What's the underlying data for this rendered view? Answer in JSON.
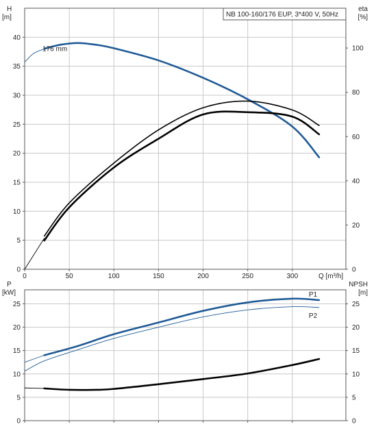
{
  "chart_data": [
    {
      "type": "line",
      "title": "NB 100-160/176 EUP, 3*400 V, 50Hz",
      "xlabel": "Q [m³/h]",
      "ylabel_left": [
        "H",
        "[m]"
      ],
      "ylabel_right": [
        "eta",
        "[%]"
      ],
      "xlim": [
        0,
        360
      ],
      "x_ticks": [
        0,
        50,
        100,
        150,
        200,
        250,
        300
      ],
      "ylim_left": [
        0,
        45
      ],
      "y_ticks_left": [
        0,
        5,
        10,
        15,
        20,
        25,
        30,
        35,
        40
      ],
      "ylim_right": [
        0,
        118
      ],
      "y_ticks_right": [
        0,
        20,
        40,
        60,
        80,
        100
      ],
      "grid": true,
      "annotations": [
        {
          "text": "176 mm",
          "x": 20,
          "y": 38.1
        }
      ],
      "series": [
        {
          "axis": "left",
          "color": "#1f5a96",
          "style": "thin",
          "x": [
            0,
            10,
            22
          ],
          "y": [
            35.7,
            37.2,
            38.0
          ]
        },
        {
          "axis": "left",
          "color": "#1f5a96",
          "style": "thick",
          "x": [
            22,
            40,
            60,
            80,
            100,
            150,
            200,
            250,
            300,
            330
          ],
          "y": [
            38.0,
            38.7,
            39.0,
            38.7,
            38.1,
            36.0,
            33.0,
            29.3,
            24.6,
            19.3
          ]
        },
        {
          "axis": "right",
          "color": "#000000",
          "style": "thin",
          "x": [
            0,
            22
          ],
          "y": [
            0,
            14
          ]
        },
        {
          "axis": "right",
          "color": "#000000",
          "style": "medium",
          "x": [
            22,
            50,
            100,
            150,
            200,
            250,
            300,
            330
          ],
          "y": [
            15,
            30,
            48,
            63,
            73,
            76,
            72,
            65
          ]
        },
        {
          "axis": "right",
          "color": "#000000",
          "style": "thick",
          "x": [
            22,
            50,
            100,
            150,
            200,
            250,
            300,
            330
          ],
          "y": [
            13,
            28,
            46,
            59,
            70,
            71,
            69,
            61
          ]
        }
      ]
    },
    {
      "type": "line",
      "xlabel": "",
      "ylabel_left": [
        "P",
        "[kW]"
      ],
      "ylabel_right": [
        "NPSH",
        "[m]"
      ],
      "xlim": [
        0,
        360
      ],
      "x_ticks": [
        0,
        50,
        100,
        150,
        200,
        250,
        300
      ],
      "ylim_left": [
        0,
        28
      ],
      "y_ticks_left": [
        0,
        5,
        10,
        15,
        20,
        25
      ],
      "ylim_right": [
        0,
        28
      ],
      "y_ticks_right": [
        0,
        5,
        10,
        15,
        20,
        25
      ],
      "grid": true,
      "series": [
        {
          "name": "P1",
          "axis": "left",
          "color": "#1f5a96",
          "style": "thin",
          "x": [
            0,
            22
          ],
          "y": [
            12.5,
            14.0
          ]
        },
        {
          "name": "P1",
          "axis": "left",
          "color": "#1f5a96",
          "style": "thick",
          "x": [
            22,
            60,
            100,
            150,
            200,
            250,
            300,
            330
          ],
          "y": [
            14.0,
            16.0,
            18.5,
            21.0,
            23.5,
            25.3,
            26.1,
            25.8
          ]
        },
        {
          "name": "P2",
          "axis": "left",
          "color": "#1f5a96",
          "style": "thin",
          "x": [
            0,
            22,
            60,
            100,
            150,
            200,
            250,
            300,
            330
          ],
          "y": [
            10.6,
            12.8,
            15.2,
            17.6,
            20.0,
            22.2,
            23.7,
            24.4,
            24.2
          ]
        },
        {
          "name": "NPSH",
          "axis": "right",
          "color": "#000000",
          "style": "thin",
          "x": [
            0,
            22
          ],
          "y": [
            7.0,
            6.9
          ]
        },
        {
          "name": "NPSH",
          "axis": "right",
          "color": "#000000",
          "style": "thick",
          "x": [
            22,
            50,
            80,
            100,
            150,
            200,
            250,
            300,
            330
          ],
          "y": [
            6.9,
            6.6,
            6.6,
            6.8,
            7.8,
            8.9,
            10.1,
            11.9,
            13.2
          ]
        }
      ],
      "series_labels": [
        "P1",
        "P2"
      ]
    }
  ]
}
